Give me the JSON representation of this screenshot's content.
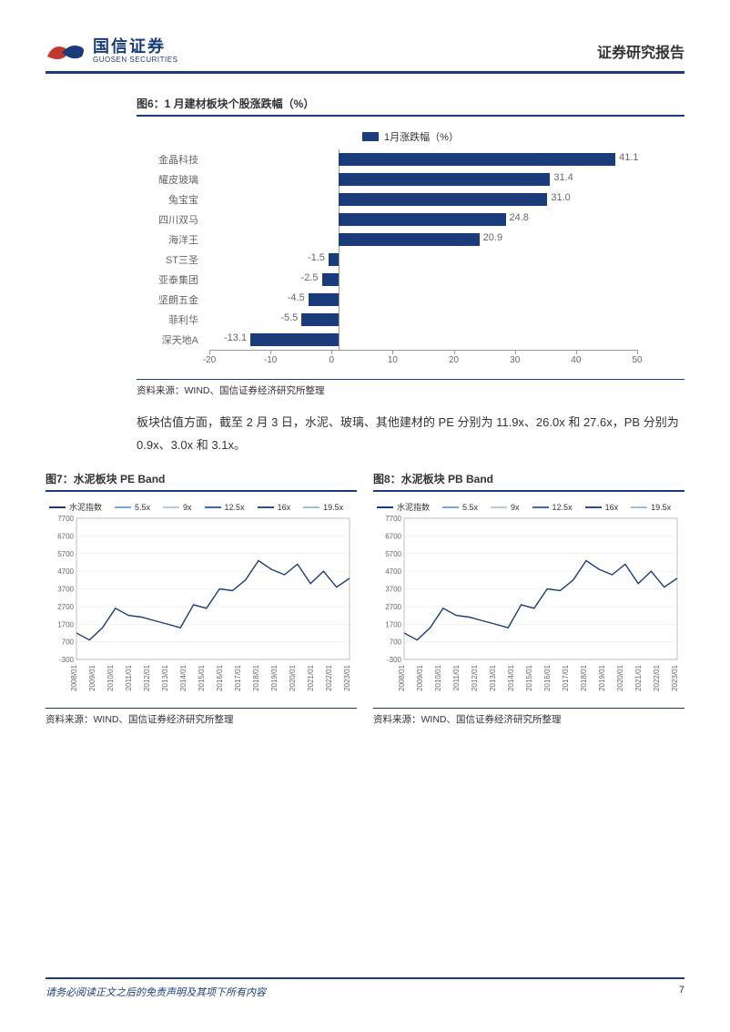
{
  "header": {
    "company_cn": "国信证券",
    "company_en": "GUOSEN SECURITIES",
    "report_title": "证券研究报告"
  },
  "fig6": {
    "title": "图6：1 月建材板块个股涨跌幅（%）",
    "legend_label": "1月涨跌幅（%）",
    "type": "bar-horizontal",
    "categories": [
      "金晶科技",
      "耀皮玻璃",
      "兔宝宝",
      "四川双马",
      "海洋王",
      "ST三圣",
      "亚泰集团",
      "坚朗五金",
      "菲利华",
      "深天地A"
    ],
    "values": [
      41.1,
      31.4,
      31.0,
      24.8,
      20.9,
      -1.5,
      -2.5,
      -4.5,
      -5.5,
      -13.1
    ],
    "bar_color": "#1a3c7a",
    "xlim": [
      -20,
      50
    ],
    "xticks": [
      -20,
      -10,
      0,
      10,
      20,
      30,
      40,
      50
    ],
    "source": "资料来源：WIND、国信证券经济研究所整理"
  },
  "body_paragraph": "板块估值方面，截至 2 月 3 日，水泥、玻璃、其他建材的 PE 分别为 11.9x、26.0x 和 27.6x，PB 分别为 0.9x、3.0x 和 3.1x。",
  "fig7": {
    "title": "图7：水泥板块 PE Band",
    "type": "line",
    "legend": [
      {
        "label": "水泥指数",
        "color": "#1a3c7a"
      },
      {
        "label": "5.5x",
        "color": "#7aa6d8"
      },
      {
        "label": "9x",
        "color": "#b8c9e0"
      },
      {
        "label": "12.5x",
        "color": "#3e6aa8"
      },
      {
        "label": "16x",
        "color": "#2d4f88"
      },
      {
        "label": "19.5x",
        "color": "#9fbedd"
      }
    ],
    "ylim": [
      -300,
      7700
    ],
    "yticks": [
      -300,
      700,
      1700,
      2700,
      3700,
      4700,
      5700,
      6700,
      7700
    ],
    "xlabels": [
      "2008/01",
      "2009/01",
      "2010/01",
      "2011/01",
      "2012/01",
      "2013/01",
      "2014/01",
      "2015/01",
      "2016/01",
      "2017/01",
      "2018/01",
      "2019/01",
      "2020/01",
      "2021/01",
      "2022/01",
      "2023/01"
    ],
    "index_series": [
      1200,
      800,
      1500,
      2600,
      2200,
      2100,
      1900,
      1700,
      1500,
      2800,
      2600,
      3700,
      3600,
      4200,
      5300,
      4800,
      4500,
      5100,
      4000,
      4700,
      3800,
      4300
    ],
    "source": "资料来源：WIND、国信证券经济研究所整理"
  },
  "fig8": {
    "title": "图8：水泥板块 PB Band",
    "type": "line",
    "legend": [
      {
        "label": "水泥指数",
        "color": "#1a3c7a"
      },
      {
        "label": "5.5x",
        "color": "#7aa6d8"
      },
      {
        "label": "9x",
        "color": "#b8c9e0"
      },
      {
        "label": "12.5x",
        "color": "#3e6aa8"
      },
      {
        "label": "16x",
        "color": "#2d4f88"
      },
      {
        "label": "19.5x",
        "color": "#9fbedd"
      }
    ],
    "ylim": [
      -300,
      7700
    ],
    "yticks": [
      -300,
      700,
      1700,
      2700,
      3700,
      4700,
      5700,
      6700,
      7700
    ],
    "xlabels": [
      "2008/01",
      "2009/01",
      "2010/01",
      "2011/01",
      "2012/01",
      "2013/01",
      "2014/01",
      "2015/01",
      "2016/01",
      "2017/01",
      "2018/01",
      "2019/01",
      "2020/01",
      "2021/01",
      "2022/01",
      "2023/01"
    ],
    "index_series": [
      1200,
      800,
      1500,
      2600,
      2200,
      2100,
      1900,
      1700,
      1500,
      2800,
      2600,
      3700,
      3600,
      4200,
      5300,
      4800,
      4500,
      5100,
      4000,
      4700,
      3800,
      4300
    ],
    "source": "资料来源：WIND、国信证券经济研究所整理"
  },
  "footer": {
    "disclaimer": "请务必阅读正文之后的免责声明及其项下所有内容",
    "page_number": "7"
  },
  "colors": {
    "brand_blue": "#1a3c7a",
    "brand_red": "#c0392b",
    "grid": "#e0e0e0",
    "axis": "#999999",
    "text": "#333333"
  }
}
